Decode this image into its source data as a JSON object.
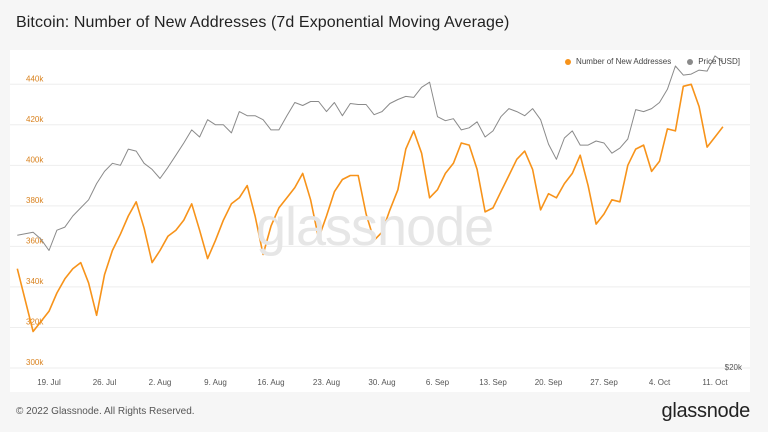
{
  "title": "Bitcoin: Number of New Addresses (7d Exponential Moving Average)",
  "watermark": "glassnode",
  "footer": {
    "copyright": "© 2022 Glassnode. All Rights Reserved.",
    "logo": "glassnode"
  },
  "colors": {
    "addresses": "#f7931a",
    "price": "#8a8a8a",
    "axis_text": "#d9821e",
    "grid": "#eeeeee"
  },
  "legend": [
    {
      "label": "Number of New Addresses",
      "color": "#f7931a"
    },
    {
      "label": "Price [USD]",
      "color": "#8a8a8a"
    }
  ],
  "chart_data": {
    "type": "line",
    "title": "Bitcoin: Number of New Addresses (7d Exponential Moving Average)",
    "x_tick_labels": [
      "19. Jul",
      "26. Jul",
      "2. Aug",
      "9. Aug",
      "16. Aug",
      "23. Aug",
      "30. Aug",
      "6. Sep",
      "13. Sep",
      "20. Sep",
      "27. Sep",
      "4. Oct",
      "11. Oct"
    ],
    "y_tick_labels": [
      "300k",
      "320k",
      "340k",
      "360k",
      "380k",
      "400k",
      "420k",
      "440k"
    ],
    "ylim": [
      300000,
      450000
    ],
    "y2_label": "$20k",
    "x_range_days": [
      -4,
      87
    ],
    "series": [
      {
        "name": "Number of New Addresses",
        "axis": "left",
        "color": "#f7931a",
        "points": [
          [
            -4,
            349000
          ],
          [
            -2,
            318000
          ],
          [
            0,
            328000
          ],
          [
            1,
            337000
          ],
          [
            2,
            344000
          ],
          [
            3,
            349000
          ],
          [
            4,
            352000
          ],
          [
            5,
            342000
          ],
          [
            6,
            326000
          ],
          [
            7,
            346000
          ],
          [
            8,
            358000
          ],
          [
            9,
            366000
          ],
          [
            10,
            375000
          ],
          [
            11,
            382000
          ],
          [
            12,
            369000
          ],
          [
            13,
            352000
          ],
          [
            14,
            358000
          ],
          [
            15,
            365000
          ],
          [
            16,
            368000
          ],
          [
            17,
            373000
          ],
          [
            18,
            381000
          ],
          [
            19,
            368000
          ],
          [
            20,
            354000
          ],
          [
            21,
            363000
          ],
          [
            22,
            373000
          ],
          [
            23,
            381000
          ],
          [
            24,
            384000
          ],
          [
            25,
            390000
          ],
          [
            26,
            375000
          ],
          [
            27,
            356000
          ],
          [
            28,
            370000
          ],
          [
            29,
            379000
          ],
          [
            30,
            384000
          ],
          [
            31,
            389000
          ],
          [
            32,
            396000
          ],
          [
            33,
            383000
          ],
          [
            34,
            364000
          ],
          [
            35,
            375000
          ],
          [
            36,
            387000
          ],
          [
            37,
            393000
          ],
          [
            38,
            395000
          ],
          [
            39,
            395000
          ],
          [
            40,
            376000
          ],
          [
            41,
            363000
          ],
          [
            42,
            367000
          ],
          [
            43,
            378000
          ],
          [
            44,
            388000
          ],
          [
            45,
            408000
          ],
          [
            46,
            417000
          ],
          [
            47,
            406000
          ],
          [
            48,
            384000
          ],
          [
            49,
            388000
          ],
          [
            50,
            396000
          ],
          [
            51,
            401000
          ],
          [
            52,
            411000
          ],
          [
            53,
            410000
          ],
          [
            54,
            398000
          ],
          [
            55,
            377000
          ],
          [
            56,
            379000
          ],
          [
            57,
            387000
          ],
          [
            58,
            395000
          ],
          [
            59,
            403000
          ],
          [
            60,
            407000
          ],
          [
            61,
            398000
          ],
          [
            62,
            378000
          ],
          [
            63,
            386000
          ],
          [
            64,
            384000
          ],
          [
            65,
            391000
          ],
          [
            66,
            396000
          ],
          [
            67,
            405000
          ],
          [
            68,
            390000
          ],
          [
            69,
            371000
          ],
          [
            70,
            376000
          ],
          [
            71,
            383000
          ],
          [
            72,
            382000
          ],
          [
            73,
            400000
          ],
          [
            74,
            408000
          ],
          [
            75,
            410000
          ],
          [
            76,
            397000
          ],
          [
            77,
            402000
          ],
          [
            78,
            418000
          ],
          [
            79,
            417000
          ],
          [
            80,
            439000
          ],
          [
            81,
            440000
          ],
          [
            82,
            429000
          ],
          [
            83,
            409000
          ],
          [
            84,
            414000
          ],
          [
            85,
            419000
          ]
        ]
      },
      {
        "name": "Price [USD]",
        "axis": "right",
        "color": "#8a8a8a",
        "scale_note": "right axis unlabeled except $20k",
        "points": [
          [
            -4,
            365500
          ],
          [
            -2,
            367000
          ],
          [
            -1,
            363500
          ],
          [
            0,
            358000
          ],
          [
            1,
            368000
          ],
          [
            2,
            369500
          ],
          [
            3,
            375000
          ],
          [
            4,
            379000
          ],
          [
            5,
            383000
          ],
          [
            6,
            391000
          ],
          [
            7,
            397000
          ],
          [
            8,
            401000
          ],
          [
            9,
            400000
          ],
          [
            10,
            408000
          ],
          [
            11,
            407000
          ],
          [
            12,
            401000
          ],
          [
            13,
            398000
          ],
          [
            14,
            393500
          ],
          [
            15,
            399000
          ],
          [
            16,
            405000
          ],
          [
            17,
            411000
          ],
          [
            18,
            417500
          ],
          [
            19,
            414000
          ],
          [
            20,
            422500
          ],
          [
            21,
            420000
          ],
          [
            22,
            420000
          ],
          [
            23,
            416000
          ],
          [
            24,
            426500
          ],
          [
            25,
            424500
          ],
          [
            26,
            424500
          ],
          [
            27,
            422500
          ],
          [
            28,
            417500
          ],
          [
            29,
            417500
          ],
          [
            30,
            424500
          ],
          [
            31,
            431000
          ],
          [
            32,
            429500
          ],
          [
            33,
            431500
          ],
          [
            34,
            431500
          ],
          [
            35,
            426500
          ],
          [
            36,
            431000
          ],
          [
            37,
            424500
          ],
          [
            38,
            430500
          ],
          [
            39,
            430000
          ],
          [
            40,
            430000
          ],
          [
            41,
            425000
          ],
          [
            42,
            426500
          ],
          [
            43,
            430500
          ],
          [
            44,
            432500
          ],
          [
            45,
            434000
          ],
          [
            46,
            433500
          ],
          [
            47,
            438500
          ],
          [
            48,
            441000
          ],
          [
            49,
            424000
          ],
          [
            50,
            422000
          ],
          [
            51,
            423000
          ],
          [
            52,
            417500
          ],
          [
            53,
            418500
          ],
          [
            54,
            421500
          ],
          [
            55,
            414000
          ],
          [
            56,
            417000
          ],
          [
            57,
            424000
          ],
          [
            58,
            428000
          ],
          [
            59,
            426500
          ],
          [
            60,
            424500
          ],
          [
            61,
            428000
          ],
          [
            62,
            422500
          ],
          [
            63,
            410500
          ],
          [
            64,
            403000
          ],
          [
            65,
            413500
          ],
          [
            66,
            417000
          ],
          [
            67,
            410000
          ],
          [
            68,
            410000
          ],
          [
            69,
            412000
          ],
          [
            70,
            411000
          ],
          [
            71,
            406000
          ],
          [
            72,
            408500
          ],
          [
            73,
            413000
          ],
          [
            74,
            427500
          ],
          [
            75,
            426500
          ],
          [
            76,
            428000
          ],
          [
            77,
            431000
          ],
          [
            78,
            437500
          ],
          [
            79,
            449000
          ],
          [
            80,
            444500
          ],
          [
            81,
            445000
          ],
          [
            82,
            447000
          ],
          [
            83,
            446500
          ],
          [
            84,
            454000
          ],
          [
            85,
            451000
          ]
        ]
      }
    ]
  }
}
